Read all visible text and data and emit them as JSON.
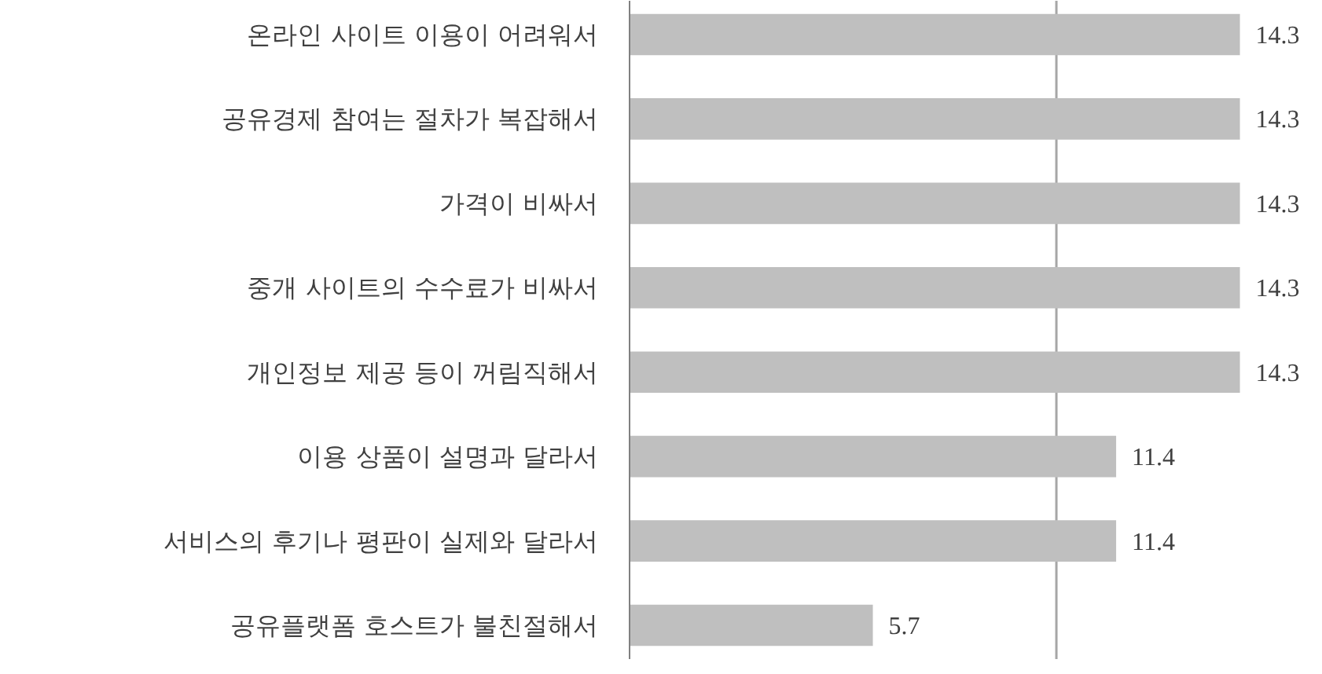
{
  "chart_data": {
    "type": "bar",
    "orientation": "horizontal",
    "categories": [
      "온라인 사이트 이용이 어려워서",
      "공유경제 참여는 절차가 복잡해서",
      "가격이 비싸서",
      "중개 사이트의 수수료가 비싸서",
      "개인정보 제공 등이 꺼림직해서",
      "이용 상품이 설명과 달라서",
      "서비스의 후기나 평판이 실제와 달라서",
      "공유플랫폼 호스트가 불친절해서"
    ],
    "values": [
      14.3,
      14.3,
      14.3,
      14.3,
      14.3,
      11.4,
      11.4,
      5.7
    ],
    "color": "#bfbfbf",
    "ref_lines": [
      {
        "axis": "x",
        "value": 10,
        "color": "#a6a6a6"
      }
    ],
    "tick_labels": "y",
    "data_labels": true
  }
}
